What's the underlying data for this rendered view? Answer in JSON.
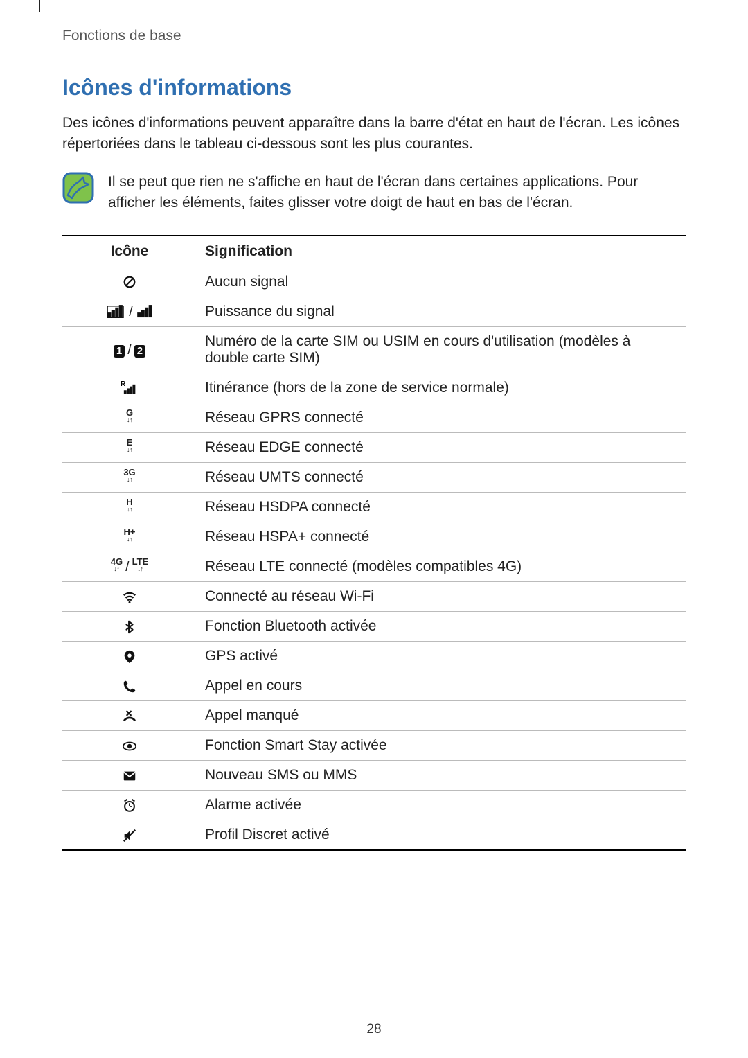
{
  "breadcrumb": "Fonctions de base",
  "section_title": "Icônes d'informations",
  "intro": "Des icônes d'informations peuvent apparaître dans la barre d'état en haut de l'écran. Les icônes répertoriées dans le tableau ci-dessous sont les plus courantes.",
  "note": "Il se peut que rien ne s'affiche en haut de l'écran dans certaines applications. Pour afficher les éléments, faites glisser votre doigt de haut en bas de l'écran.",
  "table": {
    "head_icon": "Icône",
    "head_meaning": "Signification",
    "rows": [
      {
        "icon": "no-signal",
        "text": "Aucun signal"
      },
      {
        "icon": "signal-pair",
        "text": "Puissance du signal"
      },
      {
        "icon": "sim-1-2",
        "text": "Numéro de la carte SIM ou USIM en cours d'utilisation (modèles à double carte SIM)"
      },
      {
        "icon": "roaming",
        "text": "Itinérance (hors de la zone de service normale)"
      },
      {
        "icon": "net-g",
        "text": "Réseau GPRS connecté"
      },
      {
        "icon": "net-e",
        "text": "Réseau EDGE connecté"
      },
      {
        "icon": "net-3g",
        "text": "Réseau UMTS connecté"
      },
      {
        "icon": "net-h",
        "text": "Réseau HSDPA connecté"
      },
      {
        "icon": "net-hplus",
        "text": "Réseau HSPA+ connecté"
      },
      {
        "icon": "net-4g-lte",
        "text": "Réseau LTE connecté (modèles compatibles 4G)"
      },
      {
        "icon": "wifi",
        "text": "Connecté au réseau Wi-Fi"
      },
      {
        "icon": "bluetooth",
        "text": "Fonction Bluetooth activée"
      },
      {
        "icon": "gps",
        "text": "GPS activé"
      },
      {
        "icon": "call",
        "text": "Appel en cours"
      },
      {
        "icon": "missed-call",
        "text": "Appel manqué"
      },
      {
        "icon": "smart-stay",
        "text": "Fonction Smart Stay activée"
      },
      {
        "icon": "message",
        "text": "Nouveau SMS ou MMS"
      },
      {
        "icon": "alarm",
        "text": "Alarme activée"
      },
      {
        "icon": "mute",
        "text": "Profil Discret activé"
      }
    ]
  },
  "page_number": "28",
  "colors": {
    "heading": "#2f6fb1",
    "note_icon_fill": "#7fc24b",
    "note_icon_stroke": "#2f6fb1",
    "text": "#222222",
    "border_dark": "#000000",
    "border_light": "#bbbbbb"
  }
}
